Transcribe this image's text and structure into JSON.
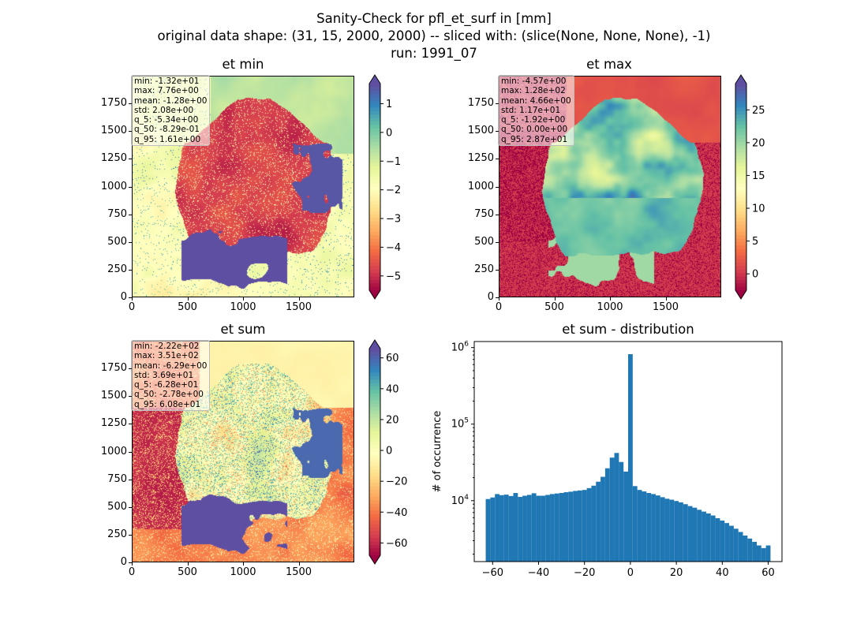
{
  "figure": {
    "title_line1": "Sanity-Check for pfl_et_surf in [mm]",
    "title_line2": "original data shape: (31, 15, 2000, 2000) -- sliced with: (slice(None, None, None), -1)",
    "title_line3": "run: 1991_07"
  },
  "panels": [
    {
      "title": "et min",
      "colormap": "Spectral",
      "stats": [
        "min: -1.32e+01",
        "max: 7.76e+00",
        "mean: -1.28e+00",
        "std: 2.08e+00",
        "q_5: -5.34e+00",
        "q_50: -8.29e-01",
        "q_95: 1.61e+00"
      ],
      "xticks": [
        "0",
        "500",
        "1000",
        "1500"
      ],
      "yticks": [
        "0",
        "250",
        "500",
        "750",
        "1000",
        "1250",
        "1500",
        "1750"
      ],
      "cbar_ticks": [
        "1",
        "0",
        "−1",
        "−2",
        "−3",
        "−4",
        "−5"
      ],
      "cbar_range": [
        -5.5,
        1.7
      ]
    },
    {
      "title": "et max",
      "colormap": "Spectral",
      "stats": [
        "min: -4.57e+00",
        "max: 1.28e+02",
        "mean: 4.66e+00",
        "std: 1.17e+01",
        "q_5: -1.92e+00",
        "q_50: 0.00e+00",
        "q_95: 2.87e+01"
      ],
      "xticks": [
        "0",
        "500",
        "1000",
        "1500"
      ],
      "yticks": [
        "0",
        "250",
        "500",
        "750",
        "1000",
        "1250",
        "1500",
        "1750"
      ],
      "cbar_ticks": [
        "25",
        "20",
        "15",
        "10",
        "5",
        "0"
      ],
      "cbar_range": [
        -2.5,
        29
      ]
    },
    {
      "title": "et sum",
      "colormap": "Spectral",
      "stats": [
        "min: -2.22e+02",
        "max: 3.51e+02",
        "mean: -6.29e+00",
        "std: 3.69e+01",
        "q_5: -6.28e+01",
        "q_50: -2.78e+00",
        "q_95: 6.08e+01"
      ],
      "xticks": [
        "0",
        "500",
        "1000",
        "1500"
      ],
      "yticks": [
        "0",
        "250",
        "500",
        "750",
        "1000",
        "1250",
        "1500",
        "1750"
      ],
      "cbar_ticks": [
        "60",
        "40",
        "20",
        "0",
        "−20",
        "−40",
        "−60"
      ],
      "cbar_range": [
        -68,
        66
      ]
    }
  ],
  "chart_data": {
    "type": "bar",
    "title": "et sum - distribution",
    "xlabel": "",
    "ylabel": "# of occurrence",
    "yscale": "log",
    "xlim": [
      -68,
      66
    ],
    "ylim": [
      1600,
      1200000
    ],
    "xtick_labels": [
      "−60",
      "−40",
      "−20",
      "0",
      "20",
      "40",
      "60"
    ],
    "ytick_labels": [
      "10^4",
      "10^5",
      "10^6"
    ],
    "bin_centers": [
      -62,
      -60,
      -58,
      -56,
      -54,
      -52,
      -50,
      -48,
      -46,
      -44,
      -42,
      -40,
      -38,
      -36,
      -34,
      -32,
      -30,
      -28,
      -26,
      -24,
      -22,
      -20,
      -18,
      -16,
      -14,
      -12,
      -10,
      -8,
      -6,
      -4,
      -2,
      0,
      2,
      4,
      6,
      8,
      10,
      12,
      14,
      16,
      18,
      20,
      22,
      24,
      26,
      28,
      30,
      32,
      34,
      36,
      38,
      40,
      42,
      44,
      46,
      48,
      50,
      52,
      54,
      56,
      58,
      60
    ],
    "counts": [
      10500,
      11000,
      12200,
      11800,
      12000,
      11500,
      12600,
      11200,
      11600,
      11900,
      12500,
      11600,
      11600,
      11900,
      12200,
      12400,
      12600,
      12900,
      13100,
      13400,
      13600,
      13800,
      14600,
      15700,
      17700,
      20500,
      26500,
      36500,
      42000,
      32000,
      24000,
      820000,
      15500,
      13800,
      13200,
      12600,
      12200,
      11700,
      11100,
      10600,
      10300,
      9900,
      9500,
      9000,
      8500,
      8100,
      7600,
      7200,
      6800,
      6400,
      5900,
      5500,
      5100,
      4700,
      4300,
      3900,
      3500,
      3200,
      2900,
      2600,
      2400,
      2600
    ],
    "color": "#1f77b4"
  }
}
